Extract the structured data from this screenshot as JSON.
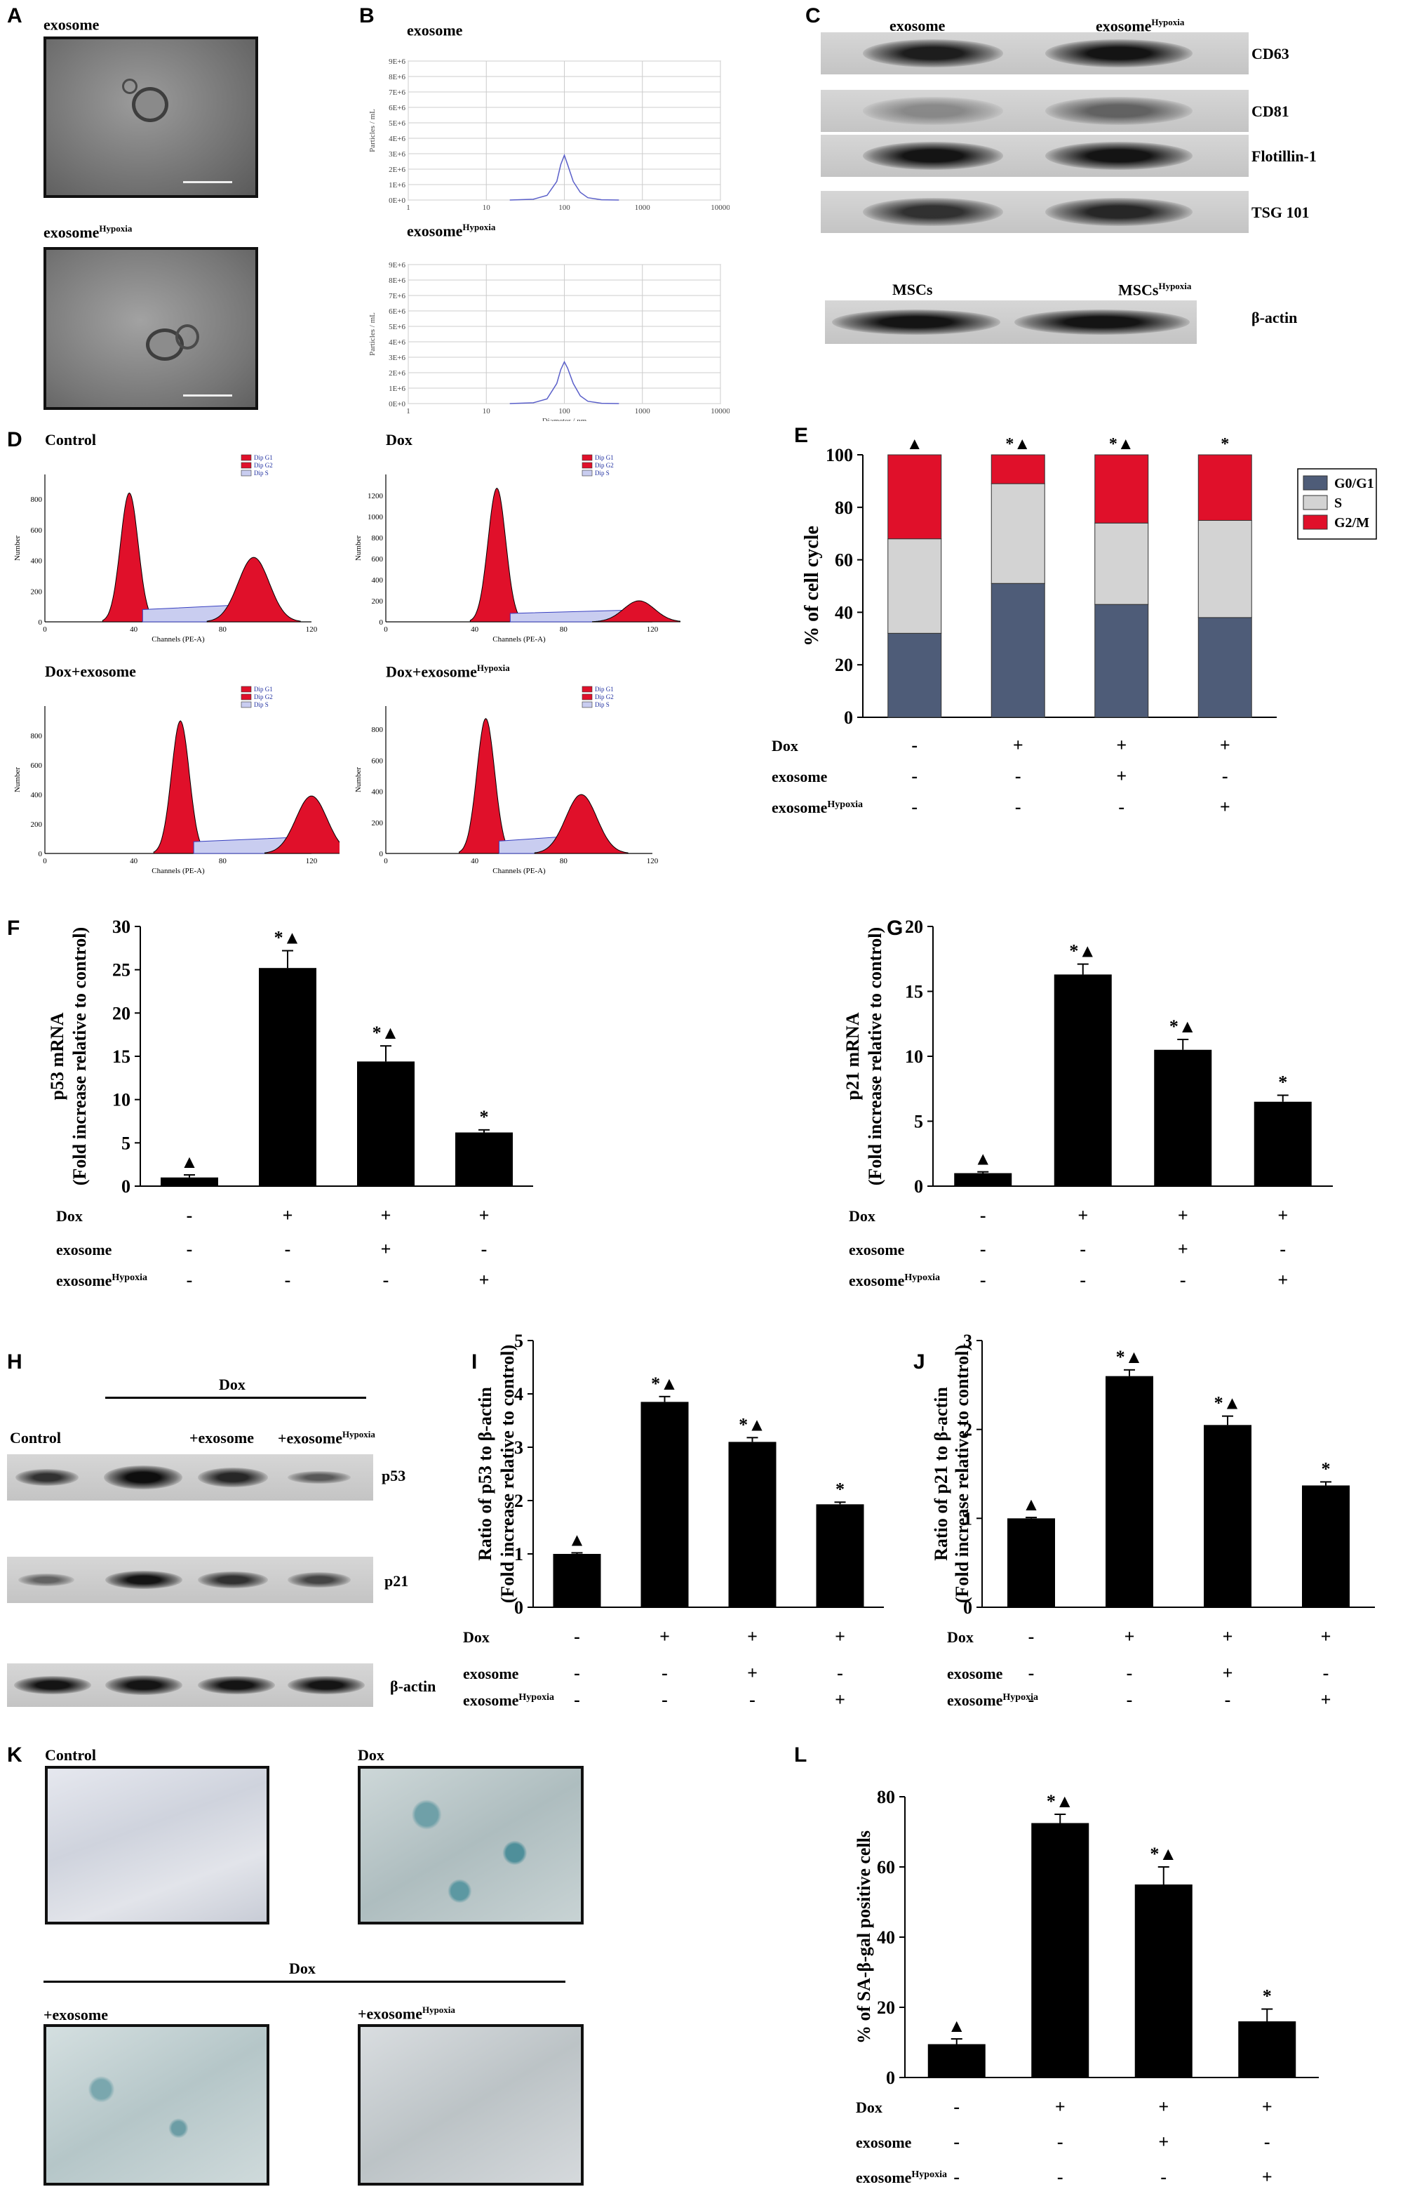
{
  "panels": {
    "A": {
      "label": "A",
      "titles": [
        "exosome",
        "exosome"
      ],
      "title_sup": [
        "",
        "Hypoxia"
      ]
    },
    "B": {
      "label": "B",
      "titles": [
        "exosome",
        "exosome"
      ],
      "title_sup": [
        "",
        "Hypoxia"
      ]
    },
    "C": {
      "label": "C",
      "header_left": "exosome",
      "header_right": "exosome",
      "header_right_sup": "Hypoxia",
      "bands": [
        "CD63",
        "CD81",
        "Flotillin-1",
        "TSG 101"
      ],
      "actin_left": "MSCs",
      "actin_right": "MSCs",
      "actin_right_sup": "Hypoxia",
      "actin_band": "β-actin"
    },
    "D": {
      "label": "D",
      "titles": [
        "Control",
        "Dox",
        "Dox+exosome",
        "Dox+exosome"
      ],
      "title_sup": [
        "",
        "",
        "",
        "Hypoxia"
      ],
      "legend": [
        "Dip G1",
        "Dip G2",
        "Dip S"
      ]
    },
    "E": {
      "label": "E"
    },
    "F": {
      "label": "F"
    },
    "G": {
      "label": "G"
    },
    "H": {
      "label": "H",
      "dox": "Dox",
      "lanes": [
        "Control",
        "+exosome",
        "+exosome"
      ],
      "lane_sup": [
        "",
        "",
        "Hypoxia"
      ],
      "bands": [
        "p53",
        "p21",
        "β-actin"
      ]
    },
    "I": {
      "label": "I"
    },
    "J": {
      "label": "J"
    },
    "K": {
      "label": "K",
      "titles": [
        "Control",
        "Dox",
        "+exosome",
        "+exosome"
      ],
      "title_sup": [
        "",
        "",
        "",
        "Hypoxia"
      ],
      "dox": "Dox"
    },
    "L": {
      "label": "L"
    }
  },
  "treatment_rows": {
    "labels": [
      "Dox",
      "exosome",
      "exosome"
    ],
    "label_sup": [
      "",
      "",
      "Hypoxia"
    ],
    "signs": [
      [
        "-",
        "+",
        "+",
        "+"
      ],
      [
        "-",
        "-",
        "+",
        "-"
      ],
      [
        "-",
        "-",
        "-",
        "+"
      ]
    ]
  },
  "chart_data": [
    {
      "panel": "B-top",
      "type": "line",
      "xlabel": "Diameter / nm",
      "ylabel": "Particles / mL",
      "xscale": "log",
      "xticks": [
        "1",
        "10",
        "100",
        "1000",
        "10000"
      ],
      "yticks": [
        "0E+0",
        "1E+6",
        "2E+6",
        "3E+6",
        "4E+6",
        "5E+6",
        "6E+6",
        "7E+6",
        "8E+6",
        "9E+6"
      ],
      "ylim": [
        0,
        9000000
      ],
      "x": [
        20,
        40,
        60,
        80,
        90,
        100,
        110,
        130,
        160,
        200,
        300,
        500
      ],
      "y": [
        0,
        50000,
        300000,
        1200000,
        2300000,
        2900000,
        2300000,
        1200000,
        500000,
        150000,
        20000,
        0
      ]
    },
    {
      "panel": "B-bottom",
      "type": "line",
      "xlabel": "Diameter / nm",
      "ylabel": "Particles / mL",
      "xscale": "log",
      "xticks": [
        "1",
        "10",
        "100",
        "1000",
        "10000"
      ],
      "yticks": [
        "0E+0",
        "1E+6",
        "2E+6",
        "3E+6",
        "4E+6",
        "5E+6",
        "6E+6",
        "7E+6",
        "8E+6",
        "9E+6"
      ],
      "ylim": [
        0,
        9000000
      ],
      "x": [
        20,
        40,
        60,
        80,
        90,
        100,
        110,
        130,
        160,
        200,
        300,
        500
      ],
      "y": [
        0,
        50000,
        300000,
        1300000,
        2200000,
        2700000,
        2300000,
        1300000,
        500000,
        150000,
        20000,
        0
      ]
    },
    {
      "panel": "D",
      "type": "area",
      "xlabel": "Channels (PE-A)",
      "ylabel": "Number",
      "xticks": [
        "0",
        "40",
        "80",
        "120"
      ],
      "xlim": [
        0,
        120
      ],
      "histograms": [
        {
          "title": "Control",
          "yticks": [
            "0",
            "200",
            "400",
            "600",
            "800"
          ],
          "ylim": [
            0,
            960
          ],
          "g1_center": 38,
          "g1_peak": 840,
          "g2_center": 94,
          "g2_peak": 420
        },
        {
          "title": "Dox",
          "yticks": [
            "0",
            "200",
            "400",
            "600",
            "800",
            "1000",
            "1200"
          ],
          "ylim": [
            0,
            1400
          ],
          "g1_center": 50,
          "g1_peak": 1270,
          "g2_center": 114,
          "g2_peak": 200
        },
        {
          "title": "Dox+exosome",
          "yticks": [
            "0",
            "200",
            "400",
            "600",
            "800"
          ],
          "ylim": [
            0,
            1000
          ],
          "g1_center": 61,
          "g1_peak": 900,
          "g2_center": 120,
          "g2_peak": 390
        },
        {
          "title": "Dox+exosome",
          "yticks": [
            "0",
            "200",
            "400",
            "600",
            "800"
          ],
          "ylim": [
            0,
            950
          ],
          "g1_center": 45,
          "g1_peak": 870,
          "g2_center": 88,
          "g2_peak": 380
        }
      ]
    },
    {
      "panel": "E",
      "type": "bar",
      "stacked": true,
      "ylabel": "% of cell cycle",
      "ylim": [
        0,
        100
      ],
      "yticks": [
        "0",
        "20",
        "40",
        "60",
        "80",
        "100"
      ],
      "categories": [
        "1",
        "2",
        "3",
        "4"
      ],
      "series": [
        {
          "name": "G0/G1",
          "color": "#4e5c78",
          "values": [
            32,
            51,
            43,
            38
          ]
        },
        {
          "name": "S",
          "color": "#d3d3d3",
          "values": [
            36,
            38,
            31,
            37
          ]
        },
        {
          "name": "G2/M",
          "color": "#e0102a",
          "values": [
            32,
            11,
            26,
            25
          ]
        }
      ],
      "annotations": [
        "▲",
        "*▲",
        "*▲",
        "*"
      ],
      "legend": "top-right"
    },
    {
      "panel": "F",
      "type": "bar",
      "ylabel": "p53 mRNA",
      "ylabel2": "(Fold increase relative to control)",
      "ylim": [
        0,
        30
      ],
      "yticks": [
        "0",
        "5",
        "10",
        "15",
        "20",
        "25",
        "30"
      ],
      "categories": [
        "1",
        "2",
        "3",
        "4"
      ],
      "values": [
        1,
        25.2,
        14.4,
        6.2
      ],
      "errors": [
        0.3,
        2.0,
        1.8,
        0.3
      ],
      "annotations": [
        "▲",
        "*▲",
        "*▲",
        "*"
      ]
    },
    {
      "panel": "G",
      "type": "bar",
      "ylabel": "p21 mRNA",
      "ylabel2": "(Fold increase relative to control)",
      "ylim": [
        0,
        20
      ],
      "yticks": [
        "0",
        "5",
        "10",
        "15",
        "20"
      ],
      "categories": [
        "1",
        "2",
        "3",
        "4"
      ],
      "values": [
        1,
        16.3,
        10.5,
        6.5
      ],
      "errors": [
        0.1,
        0.8,
        0.8,
        0.5
      ],
      "annotations": [
        "▲",
        "*▲",
        "*▲",
        "*"
      ]
    },
    {
      "panel": "I",
      "type": "bar",
      "ylabel": "Ratio of p53 to β-actin",
      "ylabel2": "(Fold increase relative to control)",
      "ylim": [
        0,
        5
      ],
      "yticks": [
        "0",
        "1",
        "2",
        "3",
        "4",
        "5"
      ],
      "categories": [
        "1",
        "2",
        "3",
        "4"
      ],
      "values": [
        1,
        3.85,
        3.1,
        1.93
      ],
      "errors": [
        0.02,
        0.1,
        0.08,
        0.04
      ],
      "annotations": [
        "▲",
        "*▲",
        "*▲",
        "*"
      ]
    },
    {
      "panel": "J",
      "type": "bar",
      "ylabel": "Ratio of p21 to β-actin",
      "ylabel2": "(Fold increase relative to control)",
      "ylim": [
        0,
        3
      ],
      "yticks": [
        "0",
        "1",
        "2",
        "3"
      ],
      "categories": [
        "1",
        "2",
        "3",
        "4"
      ],
      "values": [
        1,
        2.6,
        2.05,
        1.37
      ],
      "errors": [
        0.01,
        0.07,
        0.1,
        0.04
      ],
      "annotations": [
        "▲",
        "*▲",
        "*▲",
        "*"
      ]
    },
    {
      "panel": "L",
      "type": "bar",
      "ylabel": "% of SA-β-gal positive cells",
      "ylim": [
        0,
        80
      ],
      "yticks": [
        "0",
        "20",
        "40",
        "60",
        "80"
      ],
      "categories": [
        "1",
        "2",
        "3",
        "4"
      ],
      "values": [
        9.5,
        72.5,
        55,
        16
      ],
      "errors": [
        1.5,
        2.5,
        5,
        3.5
      ],
      "annotations": [
        "▲",
        "*▲",
        "*▲",
        "*"
      ]
    }
  ]
}
